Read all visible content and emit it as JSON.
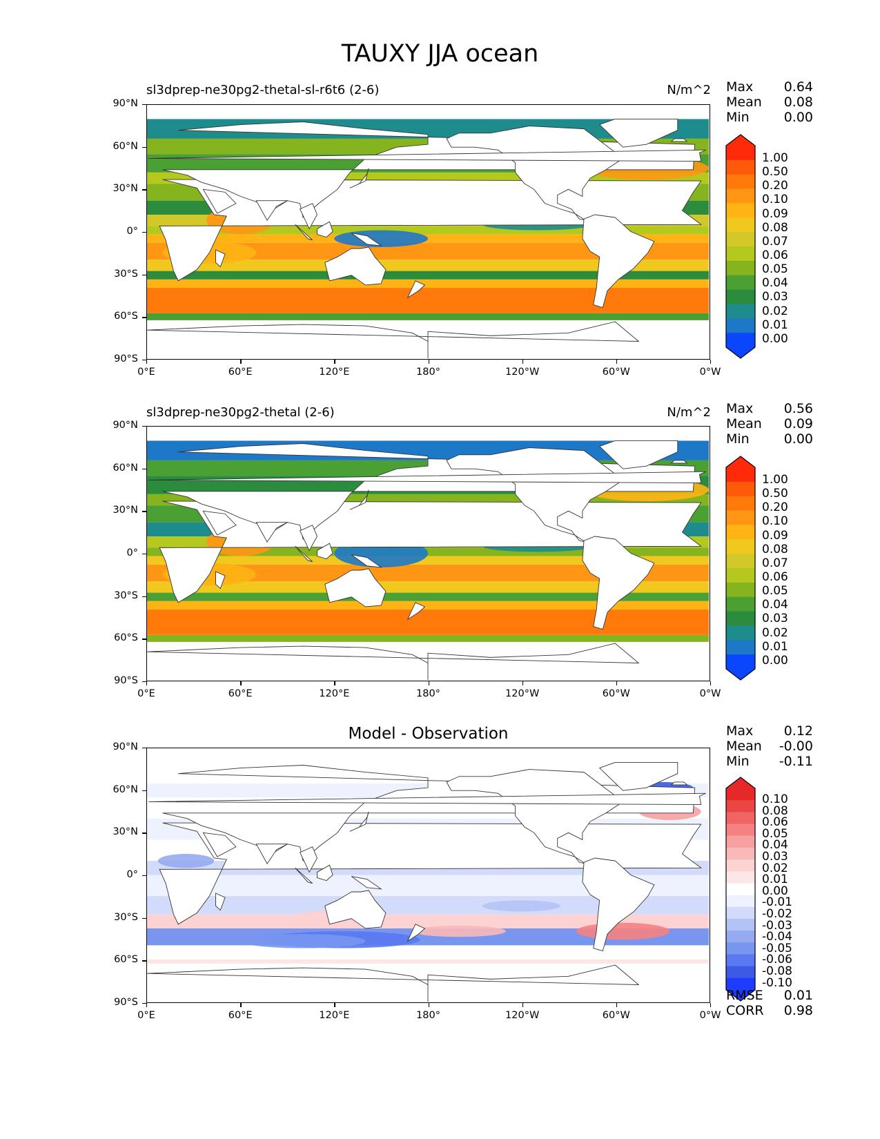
{
  "figure_title": "TAUXY JJA ocean",
  "y_ticks": [
    "90°N",
    "60°N",
    "30°N",
    "0°",
    "30°S",
    "60°S",
    "90°S"
  ],
  "x_ticks": [
    "0°E",
    "60°E",
    "120°E",
    "180°",
    "120°W",
    "60°W",
    "0°W"
  ],
  "panels": [
    {
      "name": "sl3dprep-ne30pg2-thetal-sl-r6t6 (2-6)",
      "units": "N/m^2",
      "center_title": "",
      "stats": {
        "max": "0.64",
        "mean": "0.08",
        "min": "0.00"
      },
      "colorbar_levels": [
        "1.00",
        "0.50",
        "0.20",
        "0.10",
        "0.09",
        "0.08",
        "0.07",
        "0.06",
        "0.05",
        "0.04",
        "0.03",
        "0.02",
        "0.01",
        "0.00"
      ]
    },
    {
      "name": "sl3dprep-ne30pg2-thetal (2-6)",
      "units": "N/m^2",
      "center_title": "",
      "stats": {
        "max": "0.56",
        "mean": "0.09",
        "min": "0.00"
      },
      "colorbar_levels": [
        "1.00",
        "0.50",
        "0.20",
        "0.10",
        "0.09",
        "0.08",
        "0.07",
        "0.06",
        "0.05",
        "0.04",
        "0.03",
        "0.02",
        "0.01",
        "0.00"
      ]
    },
    {
      "name": "",
      "units": "",
      "center_title": "Model - Observation",
      "stats": {
        "max": "0.12",
        "mean": "-0.00",
        "min": "-0.11"
      },
      "colorbar_levels": [
        "0.10",
        "0.08",
        "0.06",
        "0.05",
        "0.04",
        "0.03",
        "0.02",
        "0.01",
        "0.00",
        "-0.01",
        "-0.02",
        "-0.03",
        "-0.04",
        "-0.05",
        "-0.06",
        "-0.08",
        "-0.10"
      ],
      "metrics": {
        "rmse_label": "RMSE",
        "rmse": "0.01",
        "corr_label": "CORR",
        "corr": "0.98"
      }
    }
  ],
  "stat_labels": {
    "max": "Max",
    "mean": "Mean",
    "min": "Min"
  },
  "colors": {
    "seq": [
      "#0a46ff",
      "#1e78c8",
      "#1e8c8c",
      "#2a8c3c",
      "#4aa032",
      "#86b41e",
      "#b4c81e",
      "#d2c82a",
      "#f0c81e",
      "#ffb414",
      "#ff9614",
      "#ff7a0a",
      "#ff5a0a",
      "#ff2a0a"
    ],
    "diff": [
      "#1e3cff",
      "#3c5ae6",
      "#5a78f0",
      "#7896f0",
      "#96aaf0",
      "#b4c3f5",
      "#d2dcfa",
      "#eef2fe",
      "#ffffff",
      "#fde6e6",
      "#fcd2d2",
      "#fab9b9",
      "#f7a0a0",
      "#f58282",
      "#f06464",
      "#eb4646",
      "#e62828"
    ]
  },
  "chart_data": [
    {
      "type": "heatmap",
      "title": "sl3dprep-ne30pg2-thetal-sl-r6t6 (2-6)",
      "units": "N/m^2",
      "xlabel": "",
      "ylabel": "",
      "xlim": [
        0,
        360
      ],
      "ylim": [
        -90,
        90
      ],
      "x_ticks": [
        "0°E",
        "60°E",
        "120°E",
        "180°",
        "120°W",
        "60°W",
        "0°W"
      ],
      "y_ticks": [
        "90°N",
        "60°N",
        "30°N",
        "0°",
        "30°S",
        "60°S",
        "90°S"
      ],
      "stats": {
        "Max": 0.64,
        "Mean": 0.08,
        "Min": 0.0
      },
      "colorbar_levels": [
        0.0,
        0.01,
        0.02,
        0.03,
        0.04,
        0.05,
        0.06,
        0.07,
        0.08,
        0.09,
        0.1,
        0.2,
        0.5,
        1.0
      ]
    },
    {
      "type": "heatmap",
      "title": "sl3dprep-ne30pg2-thetal (2-6)",
      "units": "N/m^2",
      "xlabel": "",
      "ylabel": "",
      "xlim": [
        0,
        360
      ],
      "ylim": [
        -90,
        90
      ],
      "x_ticks": [
        "0°E",
        "60°E",
        "120°E",
        "180°",
        "120°W",
        "60°W",
        "0°W"
      ],
      "y_ticks": [
        "90°N",
        "60°N",
        "30°N",
        "0°",
        "30°S",
        "60°S",
        "90°S"
      ],
      "stats": {
        "Max": 0.56,
        "Mean": 0.09,
        "Min": 0.0
      },
      "colorbar_levels": [
        0.0,
        0.01,
        0.02,
        0.03,
        0.04,
        0.05,
        0.06,
        0.07,
        0.08,
        0.09,
        0.1,
        0.2,
        0.5,
        1.0
      ]
    },
    {
      "type": "heatmap",
      "title": "Model - Observation",
      "units": "",
      "xlabel": "",
      "ylabel": "",
      "xlim": [
        0,
        360
      ],
      "ylim": [
        -90,
        90
      ],
      "x_ticks": [
        "0°E",
        "60°E",
        "120°E",
        "180°",
        "120°W",
        "60°W",
        "0°W"
      ],
      "y_ticks": [
        "90°N",
        "60°N",
        "30°N",
        "0°",
        "30°S",
        "60°S",
        "90°S"
      ],
      "stats": {
        "Max": 0.12,
        "Mean": -0.0,
        "Min": -0.11,
        "RMSE": 0.01,
        "CORR": 0.98
      },
      "colorbar_levels": [
        -0.1,
        -0.08,
        -0.06,
        -0.05,
        -0.04,
        -0.03,
        -0.02,
        -0.01,
        0.0,
        0.01,
        0.02,
        0.03,
        0.04,
        0.05,
        0.06,
        0.08,
        0.1
      ]
    }
  ]
}
